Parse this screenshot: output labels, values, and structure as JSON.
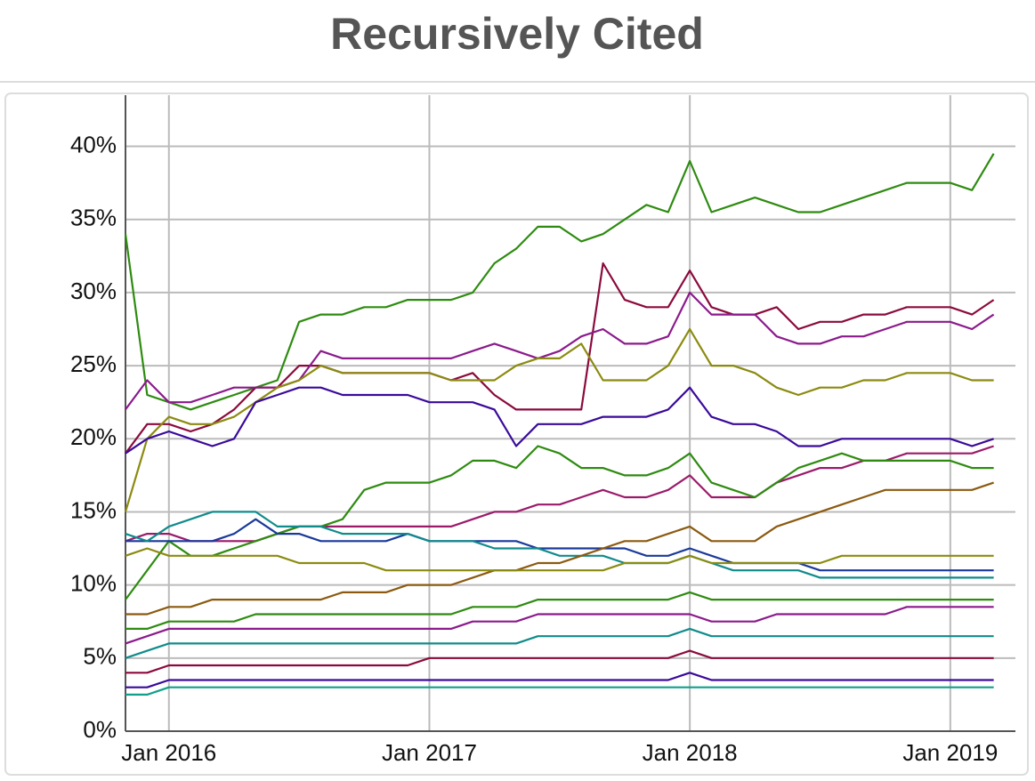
{
  "chart_data": {
    "type": "line",
    "title": "Recursively Cited",
    "x": [
      "2015-11",
      "2015-12",
      "2016-01",
      "2016-02",
      "2016-03",
      "2016-04",
      "2016-05",
      "2016-06",
      "2016-07",
      "2016-08",
      "2016-09",
      "2016-10",
      "2016-11",
      "2016-12",
      "2017-01",
      "2017-02",
      "2017-03",
      "2017-04",
      "2017-05",
      "2017-06",
      "2017-07",
      "2017-08",
      "2017-09",
      "2017-10",
      "2017-11",
      "2017-12",
      "2018-01",
      "2018-02",
      "2018-03",
      "2018-04",
      "2018-05",
      "2018-06",
      "2018-07",
      "2018-08",
      "2018-09",
      "2018-10",
      "2018-11",
      "2018-12",
      "2019-01",
      "2019-02",
      "2019-03"
    ],
    "xlim": [
      "2015-11",
      "2019-04"
    ],
    "xticks": [
      {
        "value": "2016-01",
        "label": "Jan 2016"
      },
      {
        "value": "2017-01",
        "label": "Jan 2017"
      },
      {
        "value": "2018-01",
        "label": "Jan 2018"
      },
      {
        "value": "2019-01",
        "label": "Jan 2019"
      }
    ],
    "ylim": [
      0,
      43.5
    ],
    "yticks": [
      {
        "value": 0,
        "label": "0%"
      },
      {
        "value": 5,
        "label": "5%"
      },
      {
        "value": 10,
        "label": "10%"
      },
      {
        "value": 15,
        "label": "15%"
      },
      {
        "value": 20,
        "label": "20%"
      },
      {
        "value": 25,
        "label": "25%"
      },
      {
        "value": 30,
        "label": "30%"
      },
      {
        "value": 35,
        "label": "35%"
      },
      {
        "value": 40,
        "label": "40%"
      }
    ],
    "grid": true,
    "series": [
      {
        "color": "#2e8b10",
        "values": [
          34,
          23,
          22.5,
          22,
          22.5,
          23,
          23.5,
          24,
          28,
          28.5,
          28.5,
          29,
          29,
          29.5,
          29.5,
          29.5,
          30,
          32,
          33,
          34.5,
          34.5,
          33.5,
          34,
          35,
          36,
          35.5,
          39,
          35.5,
          36,
          36.5,
          36,
          35.5,
          35.5,
          36,
          36.5,
          37,
          37.5,
          37.5,
          37.5,
          37,
          39.5
        ]
      },
      {
        "color": "#8b0a3c",
        "values": [
          19,
          21,
          21,
          20.5,
          21,
          22,
          23.5,
          23.5,
          25,
          25,
          24.5,
          24.5,
          24.5,
          24.5,
          24.5,
          24,
          24.5,
          23,
          22,
          22,
          22,
          22,
          32,
          29.5,
          29,
          29,
          31.5,
          29,
          28.5,
          28.5,
          29,
          27.5,
          28,
          28,
          28.5,
          28.5,
          29,
          29,
          29,
          28.5,
          29.5
        ]
      },
      {
        "color": "#8b1a8b",
        "values": [
          22,
          24,
          22.5,
          22.5,
          23,
          23.5,
          23.5,
          23.5,
          24,
          26,
          25.5,
          25.5,
          25.5,
          25.5,
          25.5,
          25.5,
          26,
          26.5,
          26,
          25.5,
          26,
          27,
          27.5,
          26.5,
          26.5,
          27,
          30,
          28.5,
          28.5,
          28.5,
          27,
          26.5,
          26.5,
          27,
          27,
          27.5,
          28,
          28,
          28,
          27.5,
          28.5
        ]
      },
      {
        "color": "#8b8b10",
        "values": [
          15,
          20,
          21.5,
          21,
          21,
          21.5,
          22.5,
          23.5,
          24,
          25,
          24.5,
          24.5,
          24.5,
          24.5,
          24.5,
          24,
          24,
          24,
          25,
          25.5,
          25.5,
          26.5,
          24,
          24,
          24,
          25,
          27.5,
          25,
          25,
          24.5,
          23.5,
          23,
          23.5,
          23.5,
          24,
          24,
          24.5,
          24.5,
          24.5,
          24,
          24
        ]
      },
      {
        "color": "#3a0a9b",
        "values": [
          19,
          20,
          20.5,
          20,
          19.5,
          20,
          22.5,
          23,
          23.5,
          23.5,
          23,
          23,
          23,
          23,
          22.5,
          22.5,
          22.5,
          22,
          19.5,
          21,
          21,
          21,
          21.5,
          21.5,
          21.5,
          22,
          23.5,
          21.5,
          21,
          21,
          20.5,
          19.5,
          19.5,
          20,
          20,
          20,
          20,
          20,
          20,
          19.5,
          20
        ]
      },
      {
        "color": "#9b1a6a",
        "values": [
          13,
          13.5,
          13.5,
          13,
          13,
          13,
          13,
          13.5,
          14,
          14,
          14,
          14,
          14,
          14,
          14,
          14,
          14.5,
          15,
          15,
          15.5,
          15.5,
          16,
          16.5,
          16,
          16,
          16.5,
          17.5,
          16,
          16,
          16,
          17,
          17.5,
          18,
          18,
          18.5,
          18.5,
          19,
          19,
          19,
          19,
          19.5
        ]
      },
      {
        "color": "#2e8b10",
        "values": [
          9,
          11,
          13,
          12,
          12,
          12.5,
          13,
          13.5,
          14,
          14,
          14.5,
          16.5,
          17,
          17,
          17,
          17.5,
          18.5,
          18.5,
          18,
          19.5,
          19,
          18,
          18,
          17.5,
          17.5,
          18,
          19,
          17,
          16.5,
          16,
          17,
          18,
          18.5,
          19,
          18.5,
          18.5,
          18.5,
          18.5,
          18.5,
          18,
          18
        ]
      },
      {
        "color": "#1a3a9b",
        "values": [
          13,
          13,
          13,
          13,
          13,
          13.5,
          14.5,
          13.5,
          13.5,
          13,
          13,
          13,
          13,
          13.5,
          13,
          13,
          13,
          13,
          13,
          12.5,
          12.5,
          12.5,
          12.5,
          12.5,
          12,
          12,
          12.5,
          12,
          11.5,
          11.5,
          11.5,
          11.5,
          11,
          11,
          11,
          11,
          11,
          11,
          11,
          11,
          11
        ]
      },
      {
        "color": "#108b8b",
        "values": [
          13.5,
          13,
          14,
          14.5,
          15,
          15,
          15,
          14,
          14,
          14,
          13.5,
          13.5,
          13.5,
          13.5,
          13,
          13,
          13,
          12.5,
          12.5,
          12.5,
          12,
          12,
          12,
          11.5,
          11.5,
          11.5,
          12,
          11.5,
          11,
          11,
          11,
          11,
          10.5,
          10.5,
          10.5,
          10.5,
          10.5,
          10.5,
          10.5,
          10.5,
          10.5
        ]
      },
      {
        "color": "#8b5a10",
        "values": [
          8,
          8,
          8.5,
          8.5,
          9,
          9,
          9,
          9,
          9,
          9,
          9.5,
          9.5,
          9.5,
          10,
          10,
          10,
          10.5,
          11,
          11,
          11.5,
          11.5,
          12,
          12.5,
          13,
          13,
          13.5,
          14,
          13,
          13,
          13,
          14,
          14.5,
          15,
          15.5,
          16,
          16.5,
          16.5,
          16.5,
          16.5,
          16.5,
          17
        ]
      },
      {
        "color": "#8b8b10",
        "values": [
          12,
          12.5,
          12,
          12,
          12,
          12,
          12,
          12,
          11.5,
          11.5,
          11.5,
          11.5,
          11,
          11,
          11,
          11,
          11,
          11,
          11,
          11,
          11,
          11,
          11,
          11.5,
          11.5,
          11.5,
          12,
          11.5,
          11.5,
          11.5,
          11.5,
          11.5,
          11.5,
          12,
          12,
          12,
          12,
          12,
          12,
          12,
          12
        ]
      },
      {
        "color": "#2e8b10",
        "values": [
          7,
          7,
          7.5,
          7.5,
          7.5,
          7.5,
          8,
          8,
          8,
          8,
          8,
          8,
          8,
          8,
          8,
          8,
          8.5,
          8.5,
          8.5,
          9,
          9,
          9,
          9,
          9,
          9,
          9,
          9.5,
          9,
          9,
          9,
          9,
          9,
          9,
          9,
          9,
          9,
          9,
          9,
          9,
          9,
          9
        ]
      },
      {
        "color": "#8b1a8b",
        "values": [
          6,
          6.5,
          7,
          7,
          7,
          7,
          7,
          7,
          7,
          7,
          7,
          7,
          7,
          7,
          7,
          7,
          7.5,
          7.5,
          7.5,
          8,
          8,
          8,
          8,
          8,
          8,
          8,
          8,
          7.5,
          7.5,
          7.5,
          8,
          8,
          8,
          8,
          8,
          8,
          8.5,
          8.5,
          8.5,
          8.5,
          8.5
        ]
      },
      {
        "color": "#108b8b",
        "values": [
          5,
          5.5,
          6,
          6,
          6,
          6,
          6,
          6,
          6,
          6,
          6,
          6,
          6,
          6,
          6,
          6,
          6,
          6,
          6,
          6.5,
          6.5,
          6.5,
          6.5,
          6.5,
          6.5,
          6.5,
          7,
          6.5,
          6.5,
          6.5,
          6.5,
          6.5,
          6.5,
          6.5,
          6.5,
          6.5,
          6.5,
          6.5,
          6.5,
          6.5,
          6.5
        ]
      },
      {
        "color": "#8b0a3c",
        "values": [
          4,
          4,
          4.5,
          4.5,
          4.5,
          4.5,
          4.5,
          4.5,
          4.5,
          4.5,
          4.5,
          4.5,
          4.5,
          4.5,
          5,
          5,
          5,
          5,
          5,
          5,
          5,
          5,
          5,
          5,
          5,
          5,
          5.5,
          5,
          5,
          5,
          5,
          5,
          5,
          5,
          5,
          5,
          5,
          5,
          5,
          5,
          5
        ]
      },
      {
        "color": "#3a0a9b",
        "values": [
          3,
          3,
          3.5,
          3.5,
          3.5,
          3.5,
          3.5,
          3.5,
          3.5,
          3.5,
          3.5,
          3.5,
          3.5,
          3.5,
          3.5,
          3.5,
          3.5,
          3.5,
          3.5,
          3.5,
          3.5,
          3.5,
          3.5,
          3.5,
          3.5,
          3.5,
          4,
          3.5,
          3.5,
          3.5,
          3.5,
          3.5,
          3.5,
          3.5,
          3.5,
          3.5,
          3.5,
          3.5,
          3.5,
          3.5,
          3.5
        ]
      },
      {
        "color": "#10a08b",
        "values": [
          2.5,
          2.5,
          3,
          3,
          3,
          3,
          3,
          3,
          3,
          3,
          3,
          3,
          3,
          3,
          3,
          3,
          3,
          3,
          3,
          3,
          3,
          3,
          3,
          3,
          3,
          3,
          3,
          3,
          3,
          3,
          3,
          3,
          3,
          3,
          3,
          3,
          3,
          3,
          3,
          3,
          3
        ]
      }
    ]
  }
}
